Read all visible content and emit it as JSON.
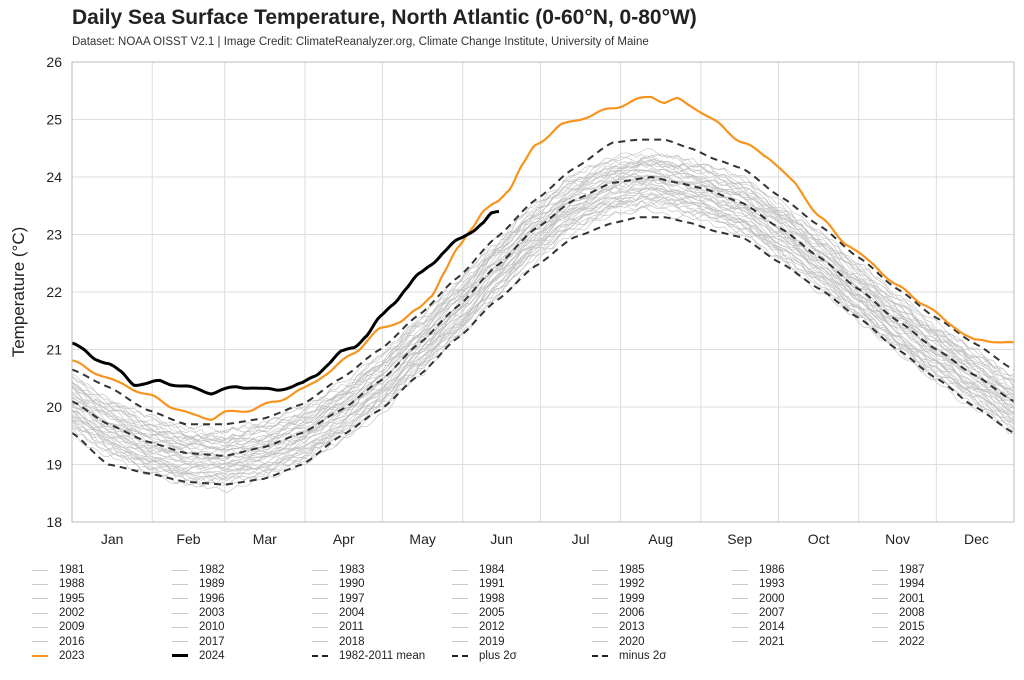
{
  "header": {
    "title": "Daily Sea Surface Temperature, North Atlantic (0-60°N, 0-80°W)",
    "subtitle": "Dataset: NOAA OISST V2.1 | Image Credit: ClimateReanalyzer.org, Climate Change Institute, University of Maine"
  },
  "colors": {
    "y2023": "#f7941d",
    "y2024": "#000000",
    "gray_years": "#bdbdbd",
    "mean": "#333333",
    "grid": "#dddddd"
  },
  "chart_data": {
    "type": "line",
    "title": "Daily Sea Surface Temperature, North Atlantic (0-60°N, 0-80°W)",
    "ylabel": "Temperature (°C)",
    "xlabel": "",
    "ylim": [
      18,
      26
    ],
    "yticks": [
      "18",
      "19",
      "20",
      "21",
      "22",
      "23",
      "24",
      "25",
      "26"
    ],
    "x_unit": "day of year",
    "xlim": [
      1,
      365
    ],
    "month_labels": [
      "Jan",
      "Feb",
      "Mar",
      "Apr",
      "May",
      "Jun",
      "Jul",
      "Aug",
      "Sep",
      "Oct",
      "Nov",
      "Dec"
    ],
    "grid": true,
    "legend_position": "bottom",
    "background_years_description_note": "",
    "series": [
      {
        "name": "2023",
        "color": "#f7941d",
        "style": "solid",
        "x": [
          1,
          10,
          20,
          31,
          40,
          48,
          55,
          60,
          70,
          80,
          90,
          100,
          110,
          120,
          128,
          135,
          140,
          145,
          150,
          155,
          160,
          165,
          170,
          175,
          180,
          190,
          200,
          210,
          220,
          225,
          230,
          235,
          240,
          250,
          260,
          270,
          280,
          290,
          300,
          310,
          320,
          330,
          340,
          350,
          358,
          365
        ],
        "y": [
          20.8,
          20.6,
          20.4,
          20.2,
          20.0,
          19.85,
          19.8,
          19.9,
          19.95,
          20.1,
          20.3,
          20.6,
          20.95,
          21.35,
          21.5,
          21.7,
          21.95,
          22.35,
          22.75,
          23.1,
          23.4,
          23.55,
          23.8,
          24.2,
          24.55,
          24.9,
          25.05,
          25.2,
          25.35,
          25.4,
          25.3,
          25.35,
          25.25,
          24.95,
          24.6,
          24.35,
          23.9,
          23.3,
          22.85,
          22.5,
          22.1,
          21.8,
          21.45,
          21.15,
          21.15,
          21.1
        ]
      },
      {
        "name": "2024",
        "color": "#000000",
        "style": "solid",
        "x": [
          1,
          5,
          10,
          15,
          20,
          25,
          30,
          35,
          40,
          45,
          50,
          55,
          60,
          65,
          70,
          75,
          80,
          85,
          90,
          95,
          100,
          105,
          110,
          115,
          120,
          125,
          130,
          135,
          140,
          145,
          150,
          155,
          160,
          163,
          166
        ],
        "y": [
          21.1,
          21.0,
          20.85,
          20.75,
          20.6,
          20.4,
          20.4,
          20.45,
          20.4,
          20.35,
          20.3,
          20.25,
          20.3,
          20.35,
          20.35,
          20.3,
          20.3,
          20.35,
          20.4,
          20.55,
          20.75,
          20.95,
          21.05,
          21.25,
          21.55,
          21.8,
          22.05,
          22.3,
          22.5,
          22.7,
          22.9,
          23.05,
          23.2,
          23.35,
          23.4
        ]
      },
      {
        "name": "1982-2011 mean",
        "color": "#333333",
        "style": "dashed",
        "x": [
          1,
          15,
          30,
          45,
          60,
          75,
          90,
          105,
          120,
          135,
          150,
          165,
          180,
          195,
          210,
          225,
          235,
          245,
          260,
          275,
          290,
          305,
          320,
          335,
          350,
          365
        ],
        "y": [
          20.1,
          19.7,
          19.4,
          19.2,
          19.15,
          19.3,
          19.55,
          19.95,
          20.45,
          21.1,
          21.75,
          22.45,
          23.1,
          23.6,
          23.9,
          24.0,
          23.9,
          23.8,
          23.55,
          23.1,
          22.6,
          22.05,
          21.5,
          21.0,
          20.55,
          20.1
        ]
      },
      {
        "name": "plus 2σ",
        "color": "#333333",
        "style": "dashed",
        "x": [
          1,
          15,
          30,
          45,
          60,
          75,
          90,
          105,
          120,
          135,
          150,
          165,
          180,
          195,
          210,
          220,
          230,
          240,
          250,
          260,
          275,
          290,
          305,
          320,
          335,
          350,
          365
        ],
        "y": [
          20.65,
          20.35,
          19.95,
          19.7,
          19.7,
          19.8,
          20.05,
          20.5,
          21.0,
          21.6,
          22.25,
          22.95,
          23.6,
          24.15,
          24.6,
          24.65,
          24.65,
          24.5,
          24.3,
          24.15,
          23.65,
          23.15,
          22.6,
          22.05,
          21.55,
          21.1,
          20.65
        ]
      },
      {
        "name": "minus 2σ",
        "color": "#333333",
        "style": "dashed",
        "x": [
          1,
          15,
          30,
          45,
          60,
          75,
          90,
          105,
          120,
          135,
          150,
          165,
          180,
          195,
          210,
          220,
          230,
          240,
          250,
          260,
          275,
          290,
          305,
          320,
          335,
          350,
          365
        ],
        "y": [
          19.55,
          19.0,
          18.85,
          18.7,
          18.65,
          18.75,
          19.0,
          19.5,
          19.95,
          20.55,
          21.2,
          21.85,
          22.45,
          22.95,
          23.2,
          23.3,
          23.3,
          23.2,
          23.05,
          22.95,
          22.5,
          22.05,
          21.55,
          21.0,
          20.5,
          20.0,
          19.55
        ]
      }
    ],
    "background_years": [
      "1981",
      "1982",
      "1983",
      "1984",
      "1985",
      "1986",
      "1987",
      "1988",
      "1989",
      "1990",
      "1991",
      "1992",
      "1993",
      "1994",
      "1995",
      "1996",
      "1997",
      "1998",
      "1999",
      "2000",
      "2001",
      "2002",
      "2003",
      "2004",
      "2005",
      "2006",
      "2007",
      "2008",
      "2009",
      "2010",
      "2011",
      "2012",
      "2013",
      "2014",
      "2015",
      "2016",
      "2017",
      "2018",
      "2019",
      "2020",
      "2021",
      "2022"
    ]
  },
  "legend": {
    "rows": [
      [
        "1981",
        "1982",
        "1983",
        "1984",
        "1985",
        "1986",
        "1987"
      ],
      [
        "1988",
        "1989",
        "1990",
        "1991",
        "1992",
        "1993",
        "1994"
      ],
      [
        "1995",
        "1996",
        "1997",
        "1998",
        "1999",
        "2000",
        "2001"
      ],
      [
        "2002",
        "2003",
        "2004",
        "2005",
        "2006",
        "2007",
        "2008"
      ],
      [
        "2009",
        "2010",
        "2011",
        "2012",
        "2013",
        "2014",
        "2015"
      ],
      [
        "2016",
        "2017",
        "2018",
        "2019",
        "2020",
        "2021",
        "2022"
      ]
    ],
    "last_row": [
      {
        "label": "2023",
        "style": "orange"
      },
      {
        "label": "2024",
        "style": "black"
      },
      {
        "label": "1982-2011 mean",
        "style": "mean"
      },
      {
        "label": "plus 2σ",
        "style": "plus"
      },
      {
        "label": "minus 2σ",
        "style": "minus"
      }
    ]
  }
}
